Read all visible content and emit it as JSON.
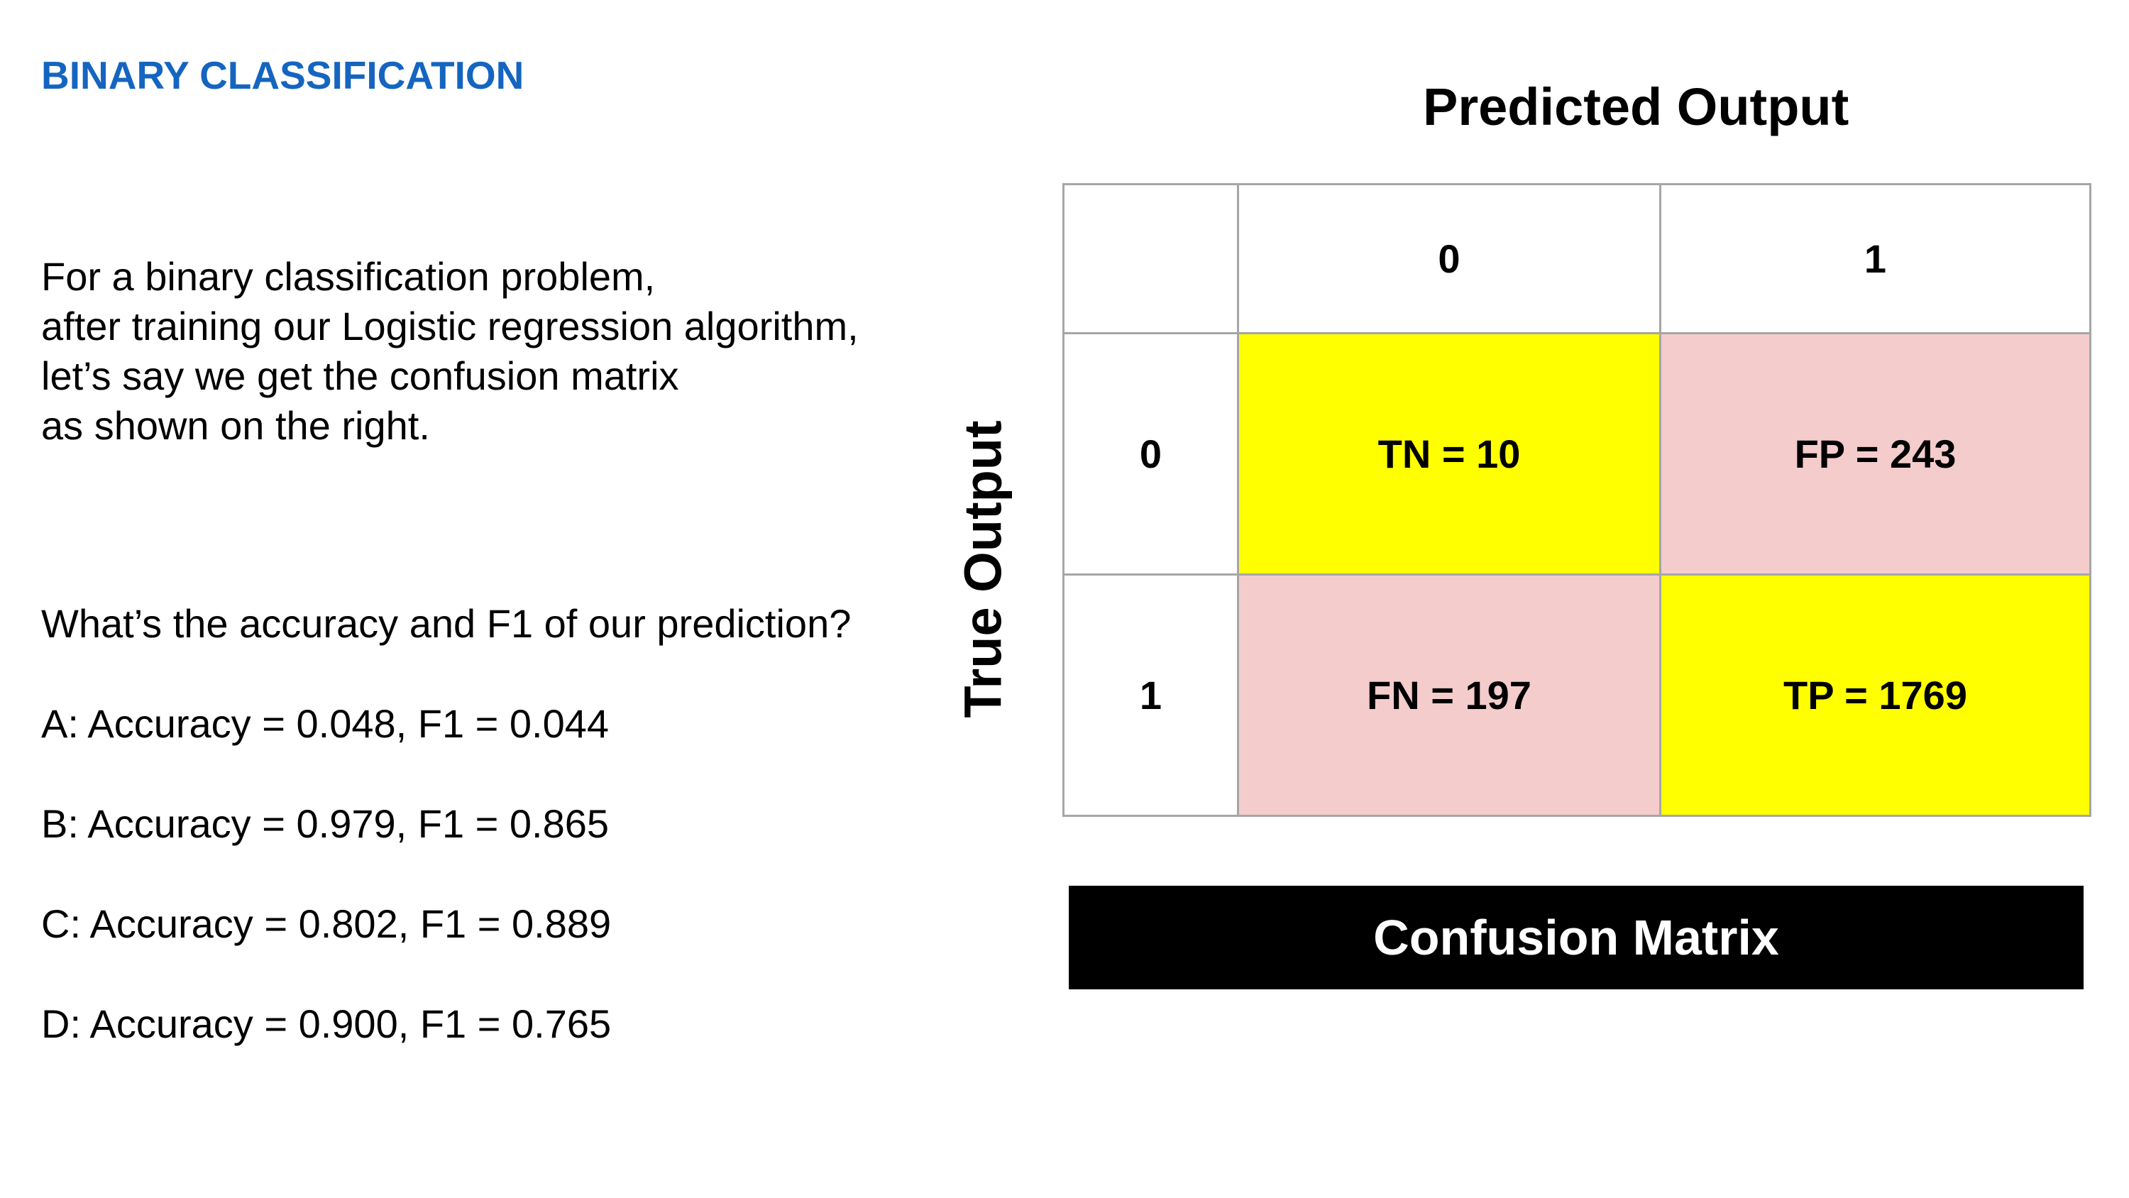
{
  "slide": {
    "title": "BINARY CLASSIFICATION"
  },
  "intro": {
    "lines": [
      "For a binary classification problem,",
      "after training our Logistic regression algorithm,",
      "let’s say we get the confusion matrix",
      "as shown on the right."
    ]
  },
  "question": "What’s the accuracy and F1 of our prediction?",
  "options": [
    "A: Accuracy = 0.048, F1 = 0.044",
    "B: Accuracy = 0.979, F1 = 0.865",
    "C: Accuracy = 0.802, F1 = 0.889",
    "D: Accuracy = 0.900, F1 = 0.765"
  ],
  "matrix": {
    "predicted_label": "Predicted Output",
    "true_label": "True Output",
    "col_headers": [
      "0",
      "1"
    ],
    "row_headers": [
      "0",
      "1"
    ],
    "cells": [
      [
        "TN = 10",
        "FP = 243"
      ],
      [
        "FN = 197",
        "TP = 1769"
      ]
    ],
    "caption": "Confusion Matrix",
    "colors": {
      "correct": "#ffff00",
      "incorrect": "#f4cccc",
      "title": "#1565c0"
    }
  }
}
